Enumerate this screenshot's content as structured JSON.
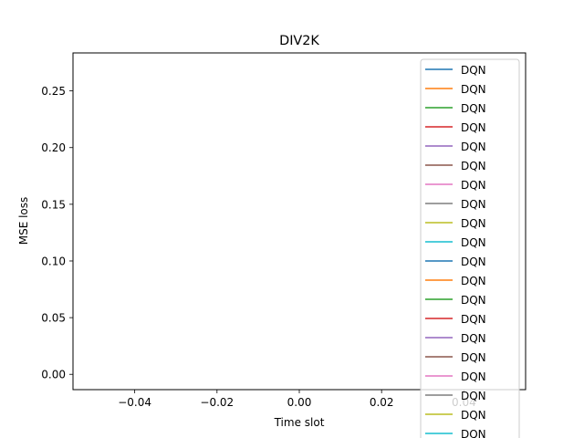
{
  "chart_data": {
    "type": "line",
    "title": "DIV2K",
    "xlabel": "Time slot",
    "ylabel": "MSE loss",
    "xlim": [
      -0.055,
      0.055
    ],
    "ylim": [
      -0.0135,
      0.2835
    ],
    "x_ticks": [
      "−0.04",
      "−0.02",
      "0.00",
      "0.02",
      "0.04"
    ],
    "x_tick_values": [
      -0.04,
      -0.02,
      0.0,
      0.02,
      0.04
    ],
    "y_ticks": [
      "0.00",
      "0.05",
      "0.10",
      "0.15",
      "0.20",
      "0.25"
    ],
    "y_tick_values": [
      0.0,
      0.05,
      0.1,
      0.15,
      0.2,
      0.25
    ],
    "grid": false,
    "legend_position": "top-right",
    "series": [
      {
        "name": "DQN",
        "color": "#1f77b4",
        "x": [],
        "y": []
      },
      {
        "name": "DQN",
        "color": "#ff7f0e",
        "x": [],
        "y": []
      },
      {
        "name": "DQN",
        "color": "#2ca02c",
        "x": [],
        "y": []
      },
      {
        "name": "DQN",
        "color": "#d62728",
        "x": [],
        "y": []
      },
      {
        "name": "DQN",
        "color": "#9467bd",
        "x": [],
        "y": []
      },
      {
        "name": "DQN",
        "color": "#8c564b",
        "x": [],
        "y": []
      },
      {
        "name": "DQN",
        "color": "#e377c2",
        "x": [],
        "y": []
      },
      {
        "name": "DQN",
        "color": "#7f7f7f",
        "x": [],
        "y": []
      },
      {
        "name": "DQN",
        "color": "#bcbd22",
        "x": [],
        "y": []
      },
      {
        "name": "DQN",
        "color": "#17becf",
        "x": [],
        "y": []
      },
      {
        "name": "DQN",
        "color": "#1f77b4",
        "x": [],
        "y": []
      },
      {
        "name": "DQN",
        "color": "#ff7f0e",
        "x": [],
        "y": []
      },
      {
        "name": "DQN",
        "color": "#2ca02c",
        "x": [],
        "y": []
      },
      {
        "name": "DQN",
        "color": "#d62728",
        "x": [],
        "y": []
      },
      {
        "name": "DQN",
        "color": "#9467bd",
        "x": [],
        "y": []
      },
      {
        "name": "DQN",
        "color": "#8c564b",
        "x": [],
        "y": []
      },
      {
        "name": "DQN",
        "color": "#e377c2",
        "x": [],
        "y": []
      },
      {
        "name": "DQN",
        "color": "#7f7f7f",
        "x": [],
        "y": []
      },
      {
        "name": "DQN",
        "color": "#bcbd22",
        "x": [],
        "y": []
      },
      {
        "name": "DQN",
        "color": "#17becf",
        "x": [],
        "y": []
      }
    ]
  }
}
